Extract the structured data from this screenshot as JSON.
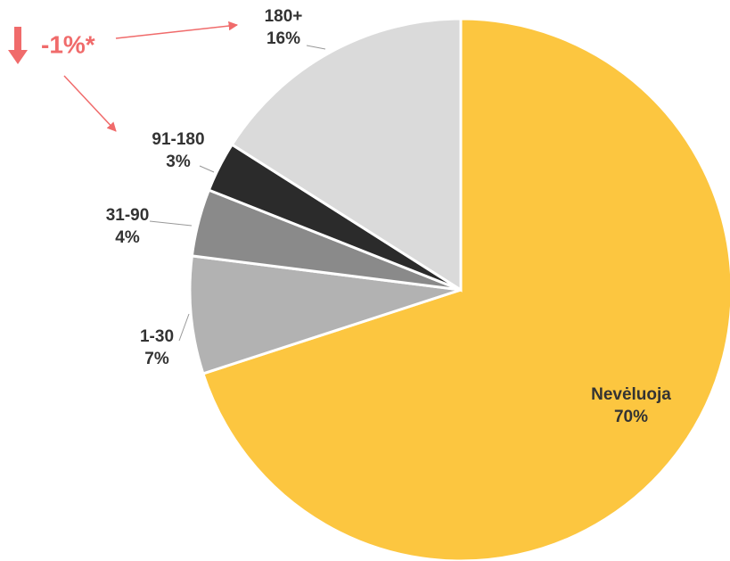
{
  "chart_data": {
    "type": "pie",
    "categories": [
      "Nevėluoja",
      "1-30",
      "31-90",
      "91-180",
      "180+"
    ],
    "values": [
      70,
      7,
      4,
      3,
      16
    ],
    "value_labels": [
      "70%",
      "7%",
      "4%",
      "3%",
      "16%"
    ],
    "colors": [
      "#fcc640",
      "#b2b2b2",
      "#8a8a8a",
      "#2b2b2b",
      "#dadada"
    ],
    "annotation": "-1%*"
  }
}
